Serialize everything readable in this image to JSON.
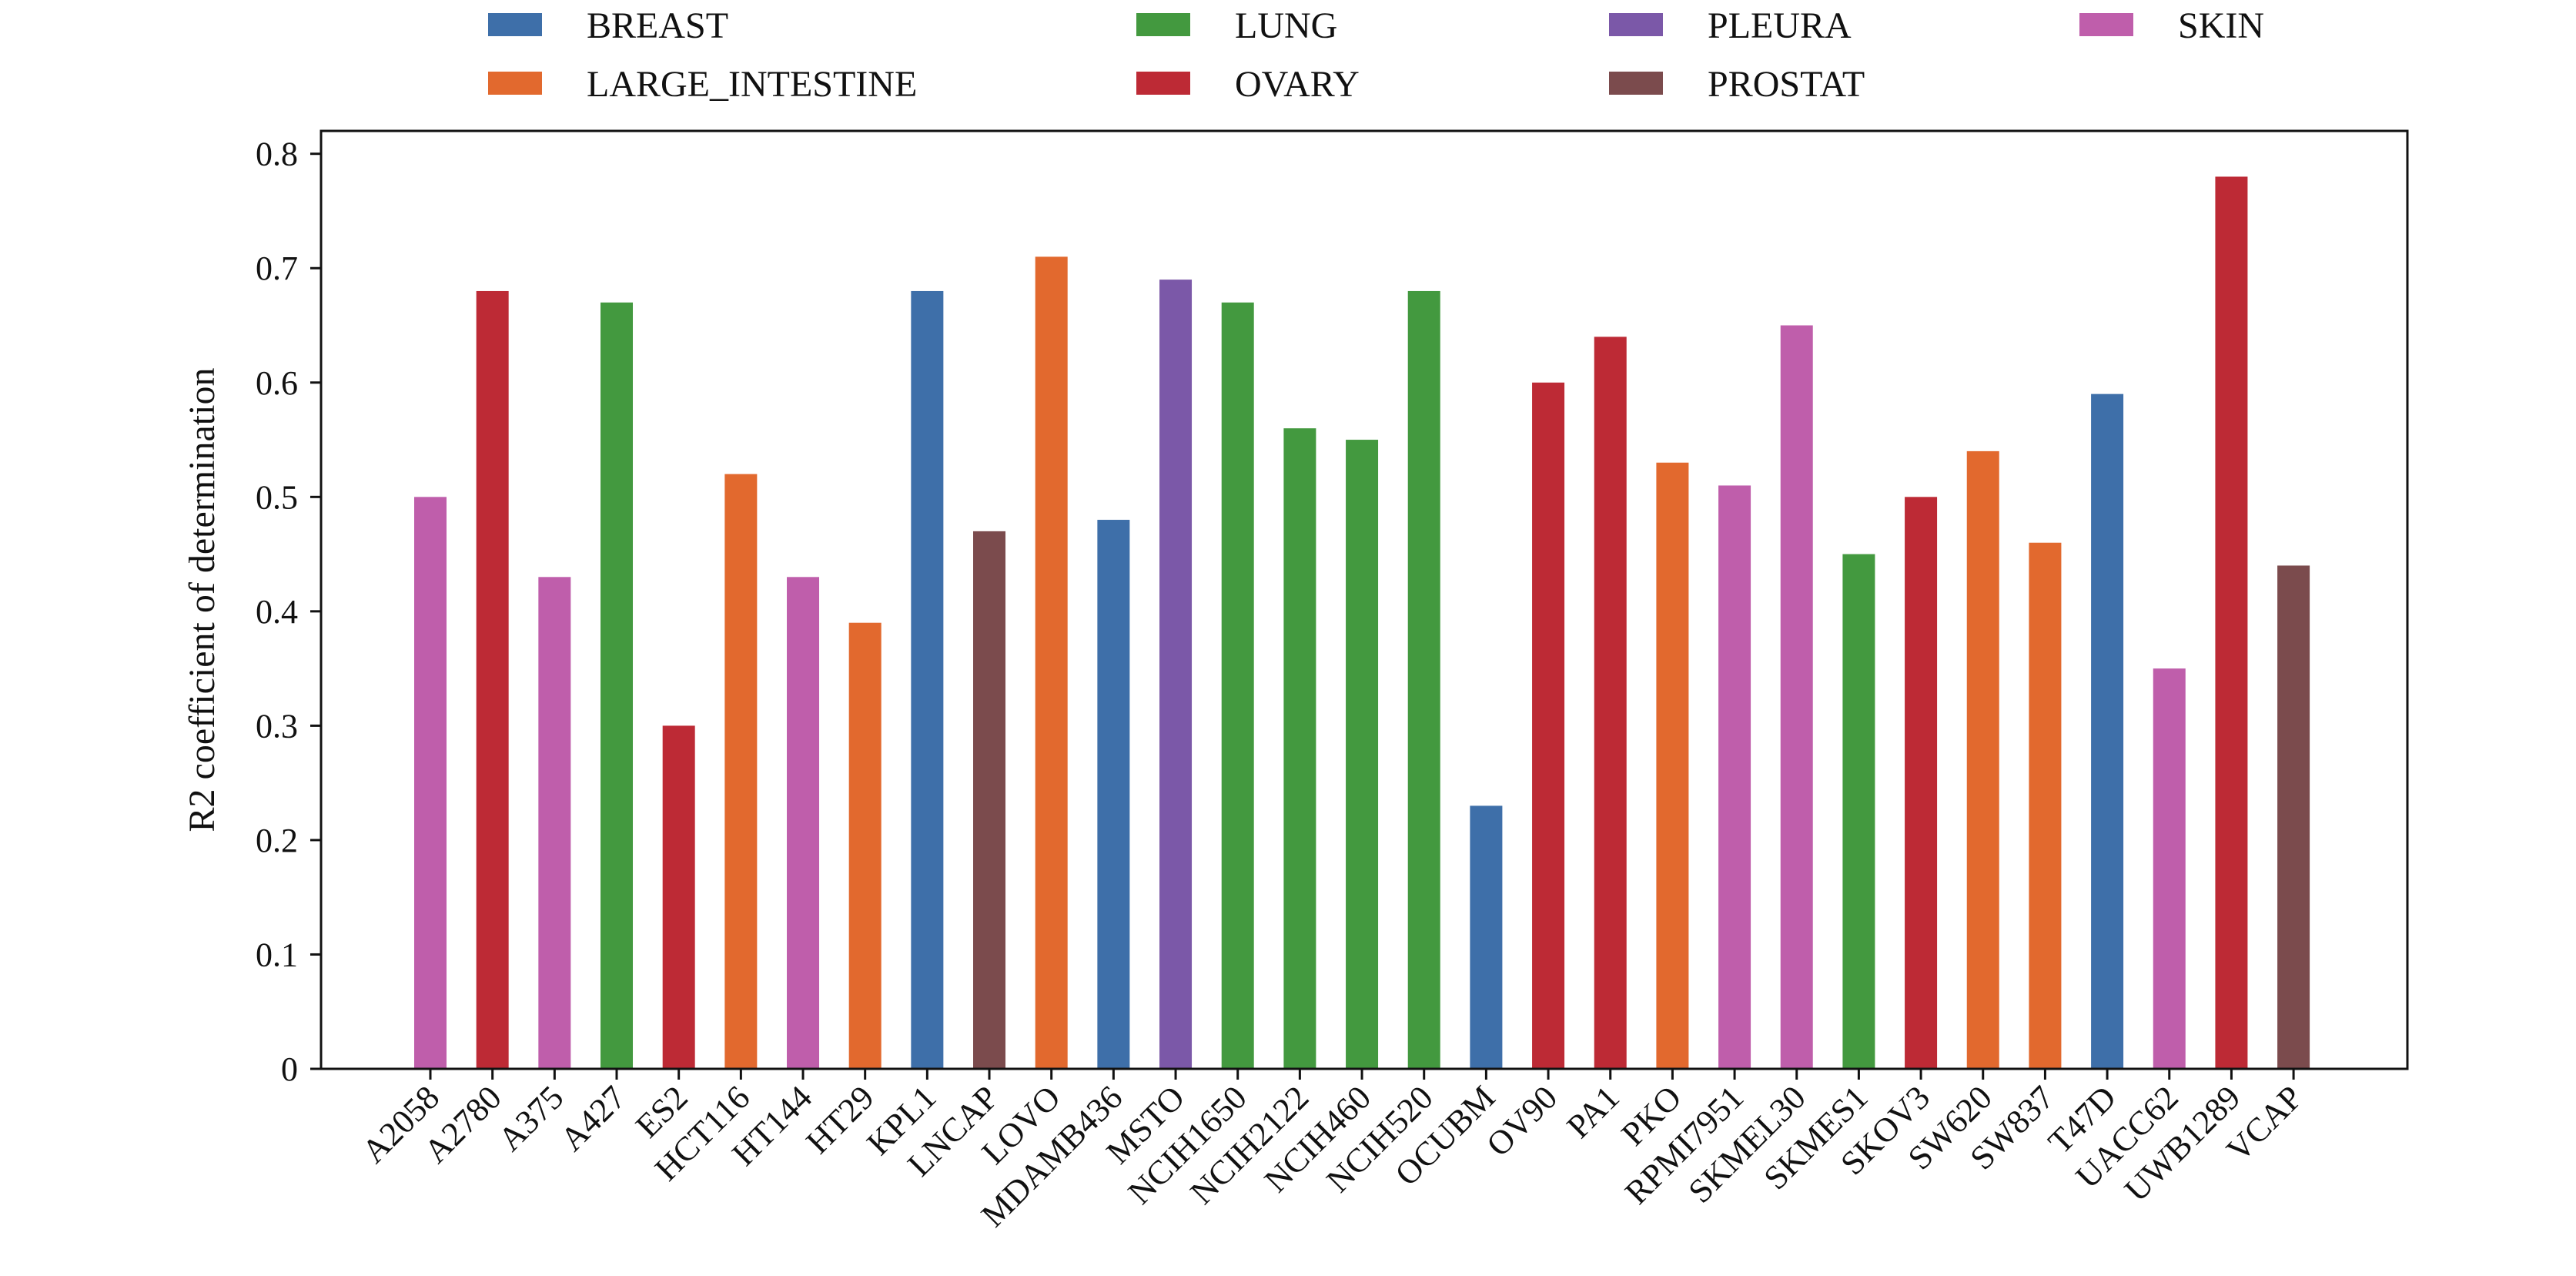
{
  "chart_data": {
    "type": "bar",
    "title": "",
    "xlabel": "",
    "ylabel": "R2 coefficient of determination",
    "ylim": [
      0,
      0.82
    ],
    "yticks": [
      0,
      0.1,
      0.2,
      0.3,
      0.4,
      0.5,
      0.6,
      0.7,
      0.8
    ],
    "ytick_labels": [
      "0",
      "0.1",
      "0.2",
      "0.3",
      "0.4",
      "0.5",
      "0.6",
      "0.7",
      "0.8"
    ],
    "grid": false,
    "legend_position": "top",
    "colors": {
      "BREAST": "#3e6fa9",
      "LARGE_INTESTINE": "#e2692e",
      "LUNG": "#43993f",
      "OVARY": "#bd2a35",
      "PLEURA": "#7b58a8",
      "PROSTAT": "#7b4b4d",
      "SKIN": "#bf5eab"
    },
    "legend": [
      "BREAST",
      "LARGE_INTESTINE",
      "LUNG",
      "OVARY",
      "PLEURA",
      "PROSTAT",
      "SKIN"
    ],
    "categories": [
      "A2058",
      "A2780",
      "A375",
      "A427",
      "ES2",
      "HCT116",
      "HT144",
      "HT29",
      "KPL1",
      "LNCAP",
      "LOVO",
      "MDAMB436",
      "MSTO",
      "NCIH1650",
      "NCIH2122",
      "NCIH460",
      "NCIH520",
      "OCUBM",
      "OV90",
      "PA1",
      "PKO",
      "RPMI7951",
      "SKMEL30",
      "SKMES1",
      "SKOV3",
      "SW620",
      "SW837",
      "T47D",
      "UACC62",
      "UWB1289",
      "VCAP"
    ],
    "values": [
      0.5,
      0.68,
      0.43,
      0.67,
      0.3,
      0.52,
      0.43,
      0.39,
      0.68,
      0.47,
      0.71,
      0.48,
      0.69,
      0.67,
      0.56,
      0.55,
      0.68,
      0.23,
      0.6,
      0.64,
      0.53,
      0.51,
      0.65,
      0.45,
      0.5,
      0.54,
      0.46,
      0.59,
      0.35,
      0.78,
      0.44
    ],
    "tissue": [
      "SKIN",
      "OVARY",
      "SKIN",
      "LUNG",
      "OVARY",
      "LARGE_INTESTINE",
      "SKIN",
      "LARGE_INTESTINE",
      "BREAST",
      "PROSTAT",
      "LARGE_INTESTINE",
      "BREAST",
      "PLEURA",
      "LUNG",
      "LUNG",
      "LUNG",
      "LUNG",
      "BREAST",
      "OVARY",
      "OVARY",
      "LARGE_INTESTINE",
      "SKIN",
      "SKIN",
      "LUNG",
      "OVARY",
      "LARGE_INTESTINE",
      "LARGE_INTESTINE",
      "BREAST",
      "SKIN",
      "OVARY",
      "PROSTAT"
    ]
  }
}
